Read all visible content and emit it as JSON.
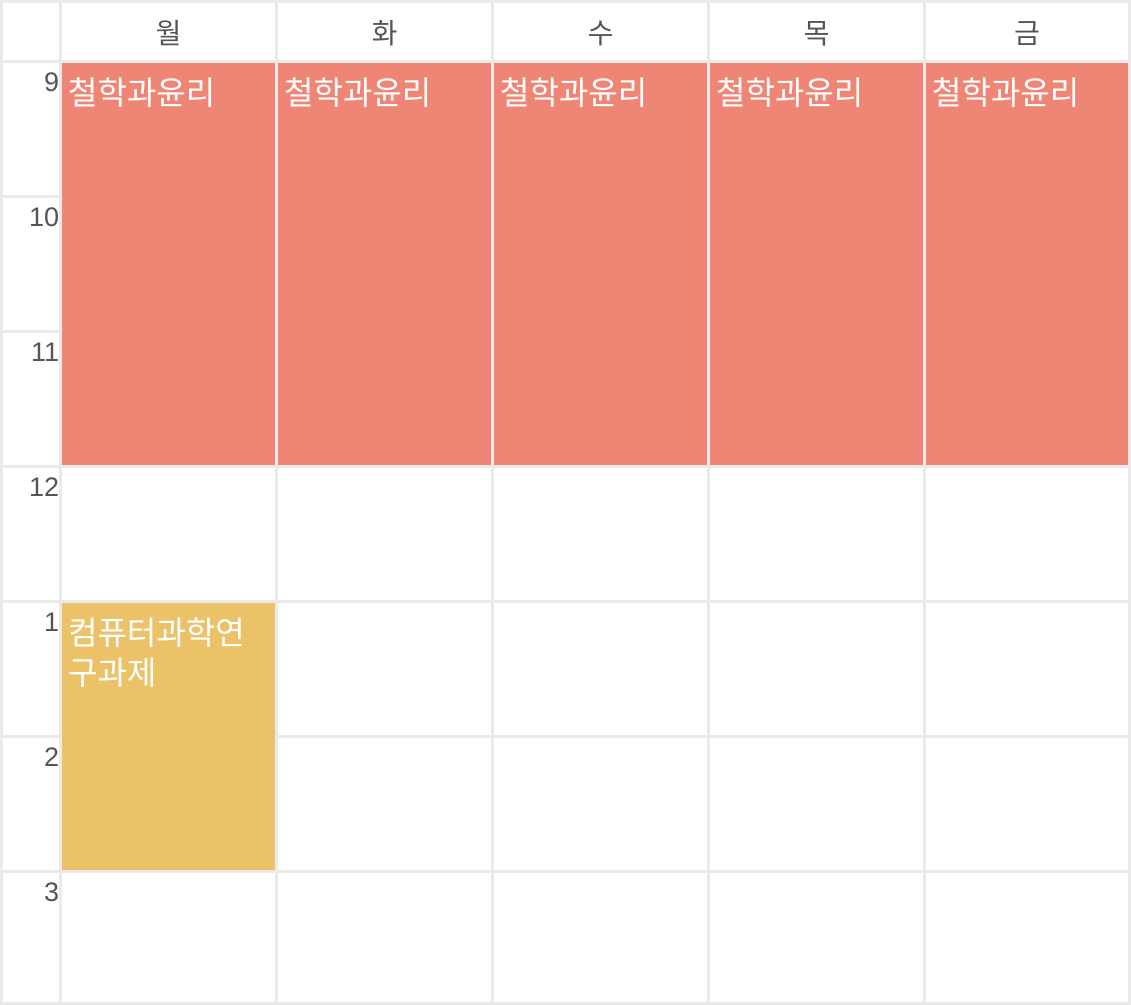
{
  "timetable": {
    "days": [
      "월",
      "화",
      "수",
      "목",
      "금"
    ],
    "hours": [
      "9",
      "10",
      "11",
      "12",
      "1",
      "2",
      "3"
    ],
    "courses": {
      "ethics": {
        "title": "철학과윤리",
        "color": "#ef8675"
      },
      "research": {
        "title": "컴퓨터과학연구과제",
        "color": "#ecc268"
      }
    }
  }
}
